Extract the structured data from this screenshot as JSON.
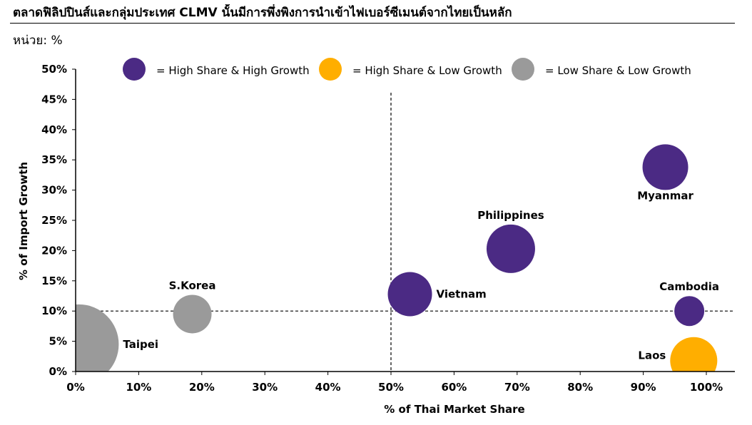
{
  "header": {
    "title": "ตลาดฟิลิปปินส์และกลุ่มประเทศ CLMV นั้นมีการพึ่งพิงการนำเข้าไฟเบอร์ซีเมนต์จากไทยเป็นหลัก",
    "unit": "หน่วย: %"
  },
  "colors": {
    "high_share_high_growth": "#4b2a84",
    "high_share_low_growth": "#ffae00",
    "low_share_low_growth": "#9a9a9a"
  },
  "chart_data": {
    "type": "scatter",
    "xlabel": "% of Thai Market Share",
    "ylabel": "% of Import Growth",
    "xlim": [
      0,
      100
    ],
    "ylim": [
      0,
      50
    ],
    "x_ticks": [
      "0%",
      "10%",
      "20%",
      "30%",
      "40%",
      "50%",
      "60%",
      "70%",
      "80%",
      "90%",
      "100%"
    ],
    "y_ticks": [
      "0%",
      "5%",
      "10%",
      "15%",
      "20%",
      "25%",
      "30%",
      "35%",
      "40%",
      "45%",
      "50%"
    ],
    "reference_lines": {
      "x": 50,
      "y": 10
    },
    "legend": [
      {
        "label": "= High Share & High Growth",
        "category": "high_share_high_growth"
      },
      {
        "label": "= High Share & Low Growth",
        "category": "high_share_low_growth"
      },
      {
        "label": "= Low Share & Low Growth",
        "category": "low_share_low_growth"
      }
    ],
    "points": [
      {
        "name": "Myanmar",
        "x": 93.5,
        "y": 33.8,
        "size": 32,
        "category": "high_share_high_growth",
        "label_pos": "below"
      },
      {
        "name": "Philippines",
        "x": 69,
        "y": 20.3,
        "size": 34,
        "category": "high_share_high_growth",
        "label_pos": "above"
      },
      {
        "name": "Vietnam",
        "x": 53,
        "y": 12.8,
        "size": 31,
        "category": "high_share_high_growth",
        "label_pos": "right"
      },
      {
        "name": "Cambodia",
        "x": 97.3,
        "y": 10,
        "size": 21,
        "category": "high_share_high_growth",
        "label_pos": "above"
      },
      {
        "name": "Laos",
        "x": 98,
        "y": 1.8,
        "size": 33,
        "category": "high_share_low_growth",
        "label_pos": "left"
      },
      {
        "name": "S.Korea",
        "x": 18.5,
        "y": 9.5,
        "size": 27,
        "category": "low_share_low_growth",
        "label_pos": "above"
      },
      {
        "name": "Taipei",
        "x": 0.5,
        "y": 4.5,
        "size": 56,
        "category": "low_share_low_growth",
        "label_pos": "right"
      }
    ]
  }
}
